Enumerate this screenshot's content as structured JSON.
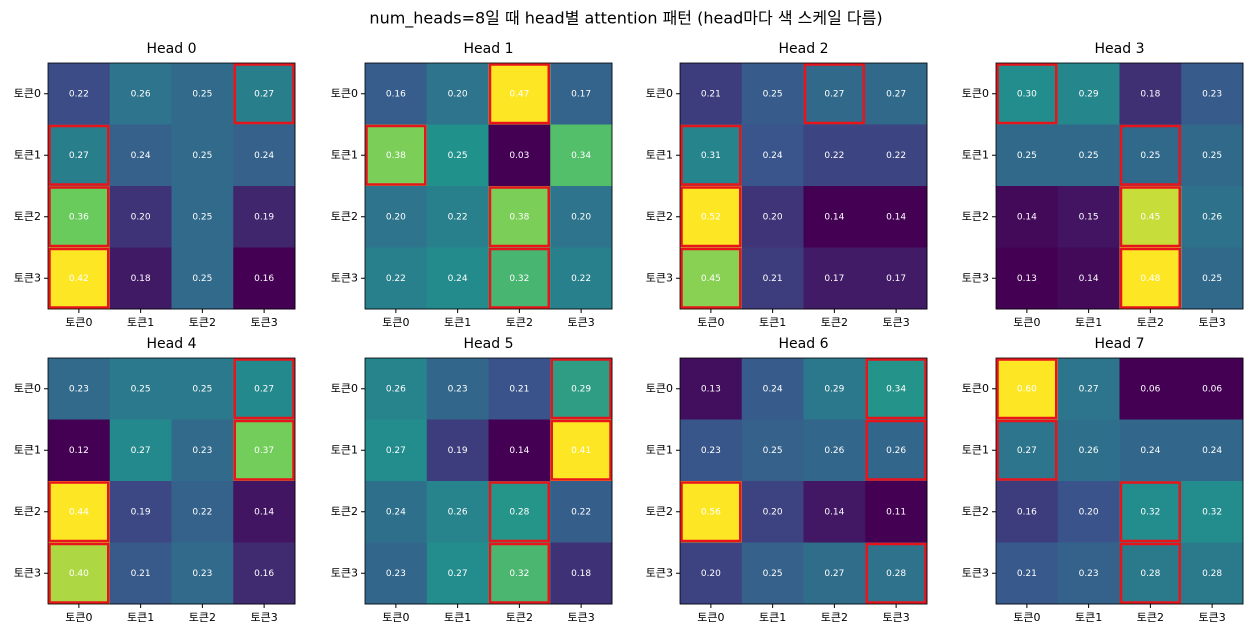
{
  "title": "num_heads=8일 때 head별 attention 패턴 (head마다 색 스케일 다름)",
  "chart_data": [
    {
      "type": "heatmap",
      "title": "Head 0",
      "x_categories": [
        "토큰0",
        "토큰1",
        "토큰2",
        "토큰3"
      ],
      "y_categories": [
        "토큰0",
        "토큰1",
        "토큰2",
        "토큰3"
      ],
      "values": [
        [
          0.22,
          0.26,
          0.25,
          0.27
        ],
        [
          0.27,
          0.24,
          0.25,
          0.24
        ],
        [
          0.36,
          0.2,
          0.25,
          0.19
        ],
        [
          0.42,
          0.18,
          0.25,
          0.16
        ]
      ],
      "value_labels": [
        [
          "0.22",
          "0.26",
          "0.25",
          "0.27"
        ],
        [
          "0.27",
          "0.24",
          "0.25",
          "0.24"
        ],
        [
          "0.36",
          "0.20",
          "0.25",
          "0.19"
        ],
        [
          "0.42",
          "0.18",
          "0.25",
          "0.16"
        ]
      ],
      "highlight": [
        3,
        0,
        0,
        0
      ],
      "highlight_color": "#e8141c",
      "colormap": "viridis"
    },
    {
      "type": "heatmap",
      "title": "Head 1",
      "x_categories": [
        "토큰0",
        "토큰1",
        "토큰2",
        "토큰3"
      ],
      "y_categories": [
        "토큰0",
        "토큰1",
        "토큰2",
        "토큰3"
      ],
      "values": [
        [
          0.16,
          0.2,
          0.47,
          0.17
        ],
        [
          0.38,
          0.25,
          0.03,
          0.34
        ],
        [
          0.2,
          0.22,
          0.38,
          0.2
        ],
        [
          0.22,
          0.24,
          0.32,
          0.22
        ]
      ],
      "value_labels": [
        [
          "0.16",
          "0.20",
          "0.47",
          "0.17"
        ],
        [
          "0.38",
          "0.25",
          "0.03",
          "0.34"
        ],
        [
          "0.20",
          "0.22",
          "0.38",
          "0.20"
        ],
        [
          "0.22",
          "0.24",
          "0.32",
          "0.22"
        ]
      ],
      "highlight": [
        2,
        0,
        2,
        2
      ],
      "highlight_color": "#e8141c",
      "colormap": "viridis"
    },
    {
      "type": "heatmap",
      "title": "Head 2",
      "x_categories": [
        "토큰0",
        "토큰1",
        "토큰2",
        "토큰3"
      ],
      "y_categories": [
        "토큰0",
        "토큰1",
        "토큰2",
        "토큰3"
      ],
      "values": [
        [
          0.21,
          0.25,
          0.27,
          0.27
        ],
        [
          0.31,
          0.24,
          0.22,
          0.22
        ],
        [
          0.52,
          0.2,
          0.14,
          0.14
        ],
        [
          0.45,
          0.21,
          0.17,
          0.17
        ]
      ],
      "value_labels": [
        [
          "0.21",
          "0.25",
          "0.27",
          "0.27"
        ],
        [
          "0.31",
          "0.24",
          "0.22",
          "0.22"
        ],
        [
          "0.52",
          "0.20",
          "0.14",
          "0.14"
        ],
        [
          "0.45",
          "0.21",
          "0.17",
          "0.17"
        ]
      ],
      "highlight": [
        2,
        0,
        0,
        0
      ],
      "highlight_color": "#e8141c",
      "colormap": "viridis"
    },
    {
      "type": "heatmap",
      "title": "Head 3",
      "x_categories": [
        "토큰0",
        "토큰1",
        "토큰2",
        "토큰3"
      ],
      "y_categories": [
        "토큰0",
        "토큰1",
        "토큰2",
        "토큰3"
      ],
      "values": [
        [
          0.3,
          0.29,
          0.18,
          0.23
        ],
        [
          0.25,
          0.25,
          0.25,
          0.25
        ],
        [
          0.14,
          0.15,
          0.45,
          0.26
        ],
        [
          0.13,
          0.14,
          0.48,
          0.25
        ]
      ],
      "value_labels": [
        [
          "0.30",
          "0.29",
          "0.18",
          "0.23"
        ],
        [
          "0.25",
          "0.25",
          "0.25",
          "0.25"
        ],
        [
          "0.14",
          "0.15",
          "0.45",
          "0.26"
        ],
        [
          "0.13",
          "0.14",
          "0.48",
          "0.25"
        ]
      ],
      "highlight": [
        0,
        2,
        2,
        2
      ],
      "highlight_color": "#e8141c",
      "colormap": "viridis"
    },
    {
      "type": "heatmap",
      "title": "Head 4",
      "x_categories": [
        "토큰0",
        "토큰1",
        "토큰2",
        "토큰3"
      ],
      "y_categories": [
        "토큰0",
        "토큰1",
        "토큰2",
        "토큰3"
      ],
      "values": [
        [
          0.23,
          0.25,
          0.25,
          0.27
        ],
        [
          0.12,
          0.27,
          0.23,
          0.37
        ],
        [
          0.44,
          0.19,
          0.22,
          0.14
        ],
        [
          0.4,
          0.21,
          0.23,
          0.16
        ]
      ],
      "value_labels": [
        [
          "0.23",
          "0.25",
          "0.25",
          "0.27"
        ],
        [
          "0.12",
          "0.27",
          "0.23",
          "0.37"
        ],
        [
          "0.44",
          "0.19",
          "0.22",
          "0.14"
        ],
        [
          "0.40",
          "0.21",
          "0.23",
          "0.16"
        ]
      ],
      "highlight": [
        3,
        3,
        0,
        0
      ],
      "highlight_color": "#e8141c",
      "colormap": "viridis"
    },
    {
      "type": "heatmap",
      "title": "Head 5",
      "x_categories": [
        "토큰0",
        "토큰1",
        "토큰2",
        "토큰3"
      ],
      "y_categories": [
        "토큰0",
        "토큰1",
        "토큰2",
        "토큰3"
      ],
      "values": [
        [
          0.26,
          0.23,
          0.21,
          0.29
        ],
        [
          0.27,
          0.19,
          0.14,
          0.41
        ],
        [
          0.24,
          0.26,
          0.28,
          0.22
        ],
        [
          0.23,
          0.27,
          0.32,
          0.18
        ]
      ],
      "value_labels": [
        [
          "0.26",
          "0.23",
          "0.21",
          "0.29"
        ],
        [
          "0.27",
          "0.19",
          "0.14",
          "0.41"
        ],
        [
          "0.24",
          "0.26",
          "0.28",
          "0.22"
        ],
        [
          "0.23",
          "0.27",
          "0.32",
          "0.18"
        ]
      ],
      "highlight": [
        3,
        3,
        2,
        2
      ],
      "highlight_color": "#e8141c",
      "colormap": "viridis"
    },
    {
      "type": "heatmap",
      "title": "Head 6",
      "x_categories": [
        "토큰0",
        "토큰1",
        "토큰2",
        "토큰3"
      ],
      "y_categories": [
        "토큰0",
        "토큰1",
        "토큰2",
        "토큰3"
      ],
      "values": [
        [
          0.13,
          0.24,
          0.29,
          0.34
        ],
        [
          0.23,
          0.25,
          0.26,
          0.26
        ],
        [
          0.56,
          0.2,
          0.14,
          0.11
        ],
        [
          0.2,
          0.25,
          0.27,
          0.28
        ]
      ],
      "value_labels": [
        [
          "0.13",
          "0.24",
          "0.29",
          "0.34"
        ],
        [
          "0.23",
          "0.25",
          "0.26",
          "0.26"
        ],
        [
          "0.56",
          "0.20",
          "0.14",
          "0.11"
        ],
        [
          "0.20",
          "0.25",
          "0.27",
          "0.28"
        ]
      ],
      "highlight": [
        3,
        3,
        0,
        3
      ],
      "highlight_color": "#e8141c",
      "colormap": "viridis"
    },
    {
      "type": "heatmap",
      "title": "Head 7",
      "x_categories": [
        "토큰0",
        "토큰1",
        "토큰2",
        "토큰3"
      ],
      "y_categories": [
        "토큰0",
        "토큰1",
        "토큰2",
        "토큰3"
      ],
      "values": [
        [
          0.6,
          0.27,
          0.06,
          0.06
        ],
        [
          0.27,
          0.26,
          0.24,
          0.24
        ],
        [
          0.16,
          0.2,
          0.32,
          0.32
        ],
        [
          0.21,
          0.23,
          0.28,
          0.28
        ]
      ],
      "value_labels": [
        [
          "0.60",
          "0.27",
          "0.06",
          "0.06"
        ],
        [
          "0.27",
          "0.26",
          "0.24",
          "0.24"
        ],
        [
          "0.16",
          "0.20",
          "0.32",
          "0.32"
        ],
        [
          "0.21",
          "0.23",
          "0.28",
          "0.28"
        ]
      ],
      "highlight": [
        0,
        0,
        2,
        2
      ],
      "highlight_color": "#e8141c",
      "colormap": "viridis"
    }
  ]
}
